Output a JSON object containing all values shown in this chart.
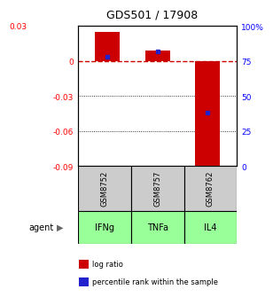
{
  "title": "GDS501 / 17908",
  "samples": [
    "GSM8752",
    "GSM8757",
    "GSM8762"
  ],
  "agents": [
    "IFNg",
    "TNFa",
    "IL4"
  ],
  "log_ratios": [
    0.025,
    0.009,
    -0.09
  ],
  "percentile_ranks": [
    0.78,
    0.82,
    0.38
  ],
  "ylim_left": [
    -0.09,
    0.03
  ],
  "ylim_right": [
    0.0,
    1.0
  ],
  "yticks_left": [
    0.0,
    -0.03,
    -0.06,
    -0.09
  ],
  "ytick_labels_left": [
    "0",
    "-0.03",
    "-0.06",
    "-0.09"
  ],
  "ytick_top_label": "0.03",
  "yticks_right": [
    1.0,
    0.75,
    0.5,
    0.25,
    0.0
  ],
  "ytick_labels_right": [
    "100%",
    "75",
    "50",
    "25",
    "0"
  ],
  "bar_width": 0.5,
  "bar_color": "#cc0000",
  "dot_color": "#2222cc",
  "zero_line_color": "#cc0000",
  "grid_color": "#333333",
  "sample_bg": "#cccccc",
  "agent_row_color": "#99ff99",
  "legend_bar_label": "log ratio",
  "legend_dot_label": "percentile rank within the sample"
}
